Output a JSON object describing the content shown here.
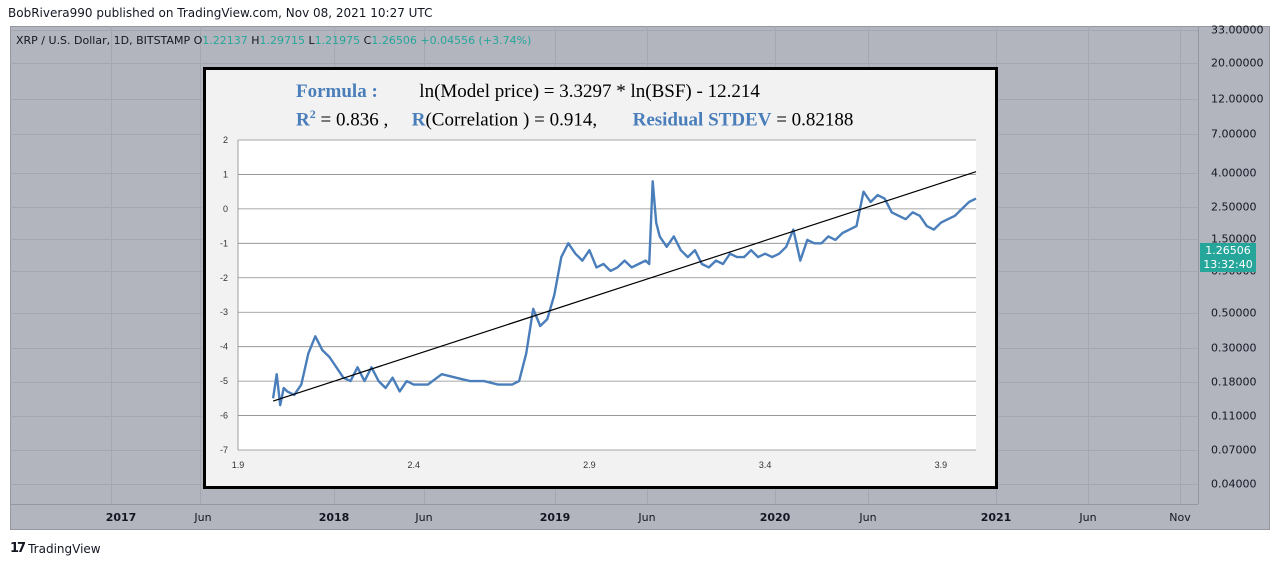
{
  "header": {
    "published_line": "BobRivera990 published on TradingView.com, Nov 08, 2021 10:27 UTC"
  },
  "legend": {
    "symbol": "XRP / U.S. Dollar, 1D, BITSTAMP",
    "open_key": "O",
    "open_value": "1.22137",
    "high_key": "H",
    "high_value": "1.29715",
    "low_key": "L",
    "low_value": "1.21975",
    "close_key": "C",
    "close_value": "1.26506",
    "change": "+0.04556 (+3.74%)"
  },
  "price_scale": {
    "ticks": [
      "33.00000",
      "20.00000",
      "12.00000",
      "7.00000",
      "4.00000",
      "2.50000",
      "1.50000",
      "0.90000",
      "0.50000",
      "0.30000",
      "0.18000",
      "0.11000",
      "0.07000",
      "0.04000"
    ],
    "current_price": "1.26506",
    "countdown": "13:32:40"
  },
  "time_scale": {
    "ticks": [
      {
        "label": "2017",
        "major": true
      },
      {
        "label": "Jun",
        "major": false
      },
      {
        "label": "2018",
        "major": true
      },
      {
        "label": "Jun",
        "major": false
      },
      {
        "label": "2019",
        "major": true
      },
      {
        "label": "Jun",
        "major": false
      },
      {
        "label": "2020",
        "major": true
      },
      {
        "label": "Jun",
        "major": false
      },
      {
        "label": "2021",
        "major": true
      },
      {
        "label": "Jun",
        "major": false
      },
      {
        "label": "Nov",
        "major": false
      }
    ]
  },
  "branding": {
    "logo_text": "TradingView"
  },
  "colors": {
    "accent": "#26a69a",
    "series": "#4a7ebb",
    "trend": "#000000",
    "chart_bg": "#b2b5be"
  },
  "inset": {
    "formula_label": "Formula :",
    "formula_text": "ln(Model price)  = 3.3297 * ln(BSF) - 12.214",
    "r2_label": "R",
    "r2_sup": "2",
    "r2_text": " = 0.836 ,",
    "r_label": "R",
    "r_text": "(Correlation )   = 0.914,",
    "stdev_label": "Residual STDEV",
    "stdev_text": " = 0.82188"
  },
  "chart_data": {
    "type": "line",
    "x_ticks": [
      "1.9",
      "2.4",
      "2.9",
      "3.4",
      "3.9"
    ],
    "y_ticks": [
      "2",
      "1",
      "0",
      "-1",
      "-2",
      "-3",
      "-4",
      "-5",
      "-6",
      "-7"
    ],
    "xlim": [
      1.9,
      4.0
    ],
    "ylim": [
      -7,
      2
    ],
    "grid": "horizontal",
    "series": [
      {
        "x": [
          2.0,
          2.01,
          2.02,
          2.03,
          2.04,
          2.06,
          2.08,
          2.1,
          2.12,
          2.14,
          2.16,
          2.18,
          2.2,
          2.22,
          2.24,
          2.26,
          2.28,
          2.3,
          2.32,
          2.34,
          2.36,
          2.38,
          2.4,
          2.44,
          2.48,
          2.52,
          2.56,
          2.6,
          2.64,
          2.68,
          2.7,
          2.72,
          2.74,
          2.76,
          2.78,
          2.8,
          2.82,
          2.84,
          2.86,
          2.88,
          2.9,
          2.92,
          2.94,
          2.96,
          2.98,
          3.0,
          3.02,
          3.04,
          3.06,
          3.07,
          3.08,
          3.09,
          3.1,
          3.12,
          3.14,
          3.16,
          3.18,
          3.2,
          3.22,
          3.24,
          3.26,
          3.28,
          3.3,
          3.32,
          3.34,
          3.36,
          3.38,
          3.4,
          3.42,
          3.44,
          3.46,
          3.48,
          3.5,
          3.52,
          3.54,
          3.56,
          3.58,
          3.6,
          3.62,
          3.64,
          3.66,
          3.68,
          3.7,
          3.72,
          3.74,
          3.76,
          3.78,
          3.8,
          3.82,
          3.84,
          3.86,
          3.88,
          3.9,
          3.92,
          3.94,
          3.96,
          3.98,
          4.0
        ],
        "y": [
          -5.5,
          -4.8,
          -5.7,
          -5.2,
          -5.3,
          -5.4,
          -5.1,
          -4.2,
          -3.7,
          -4.1,
          -4.3,
          -4.6,
          -4.9,
          -5.0,
          -4.6,
          -5.0,
          -4.6,
          -5.0,
          -5.2,
          -4.9,
          -5.3,
          -5.0,
          -5.1,
          -5.1,
          -4.8,
          -4.9,
          -5.0,
          -5.0,
          -5.1,
          -5.1,
          -5.0,
          -4.2,
          -2.9,
          -3.4,
          -3.2,
          -2.5,
          -1.4,
          -1.0,
          -1.3,
          -1.5,
          -1.2,
          -1.7,
          -1.6,
          -1.8,
          -1.7,
          -1.5,
          -1.7,
          -1.6,
          -1.5,
          -1.6,
          0.8,
          -0.4,
          -0.8,
          -1.1,
          -0.8,
          -1.2,
          -1.4,
          -1.2,
          -1.6,
          -1.7,
          -1.5,
          -1.6,
          -1.3,
          -1.4,
          -1.4,
          -1.2,
          -1.4,
          -1.3,
          -1.4,
          -1.3,
          -1.1,
          -0.6,
          -1.5,
          -0.9,
          -1.0,
          -1.0,
          -0.8,
          -0.9,
          -0.7,
          -0.6,
          -0.5,
          0.5,
          0.2,
          0.4,
          0.3,
          -0.1,
          -0.2,
          -0.3,
          -0.1,
          -0.2,
          -0.5,
          -0.6,
          -0.4,
          -0.3,
          -0.2,
          0.0,
          0.2,
          0.3
        ]
      }
    ],
    "trendline": {
      "x": [
        2.0,
        4.0
      ],
      "y": [
        -5.58,
        1.08
      ]
    }
  }
}
